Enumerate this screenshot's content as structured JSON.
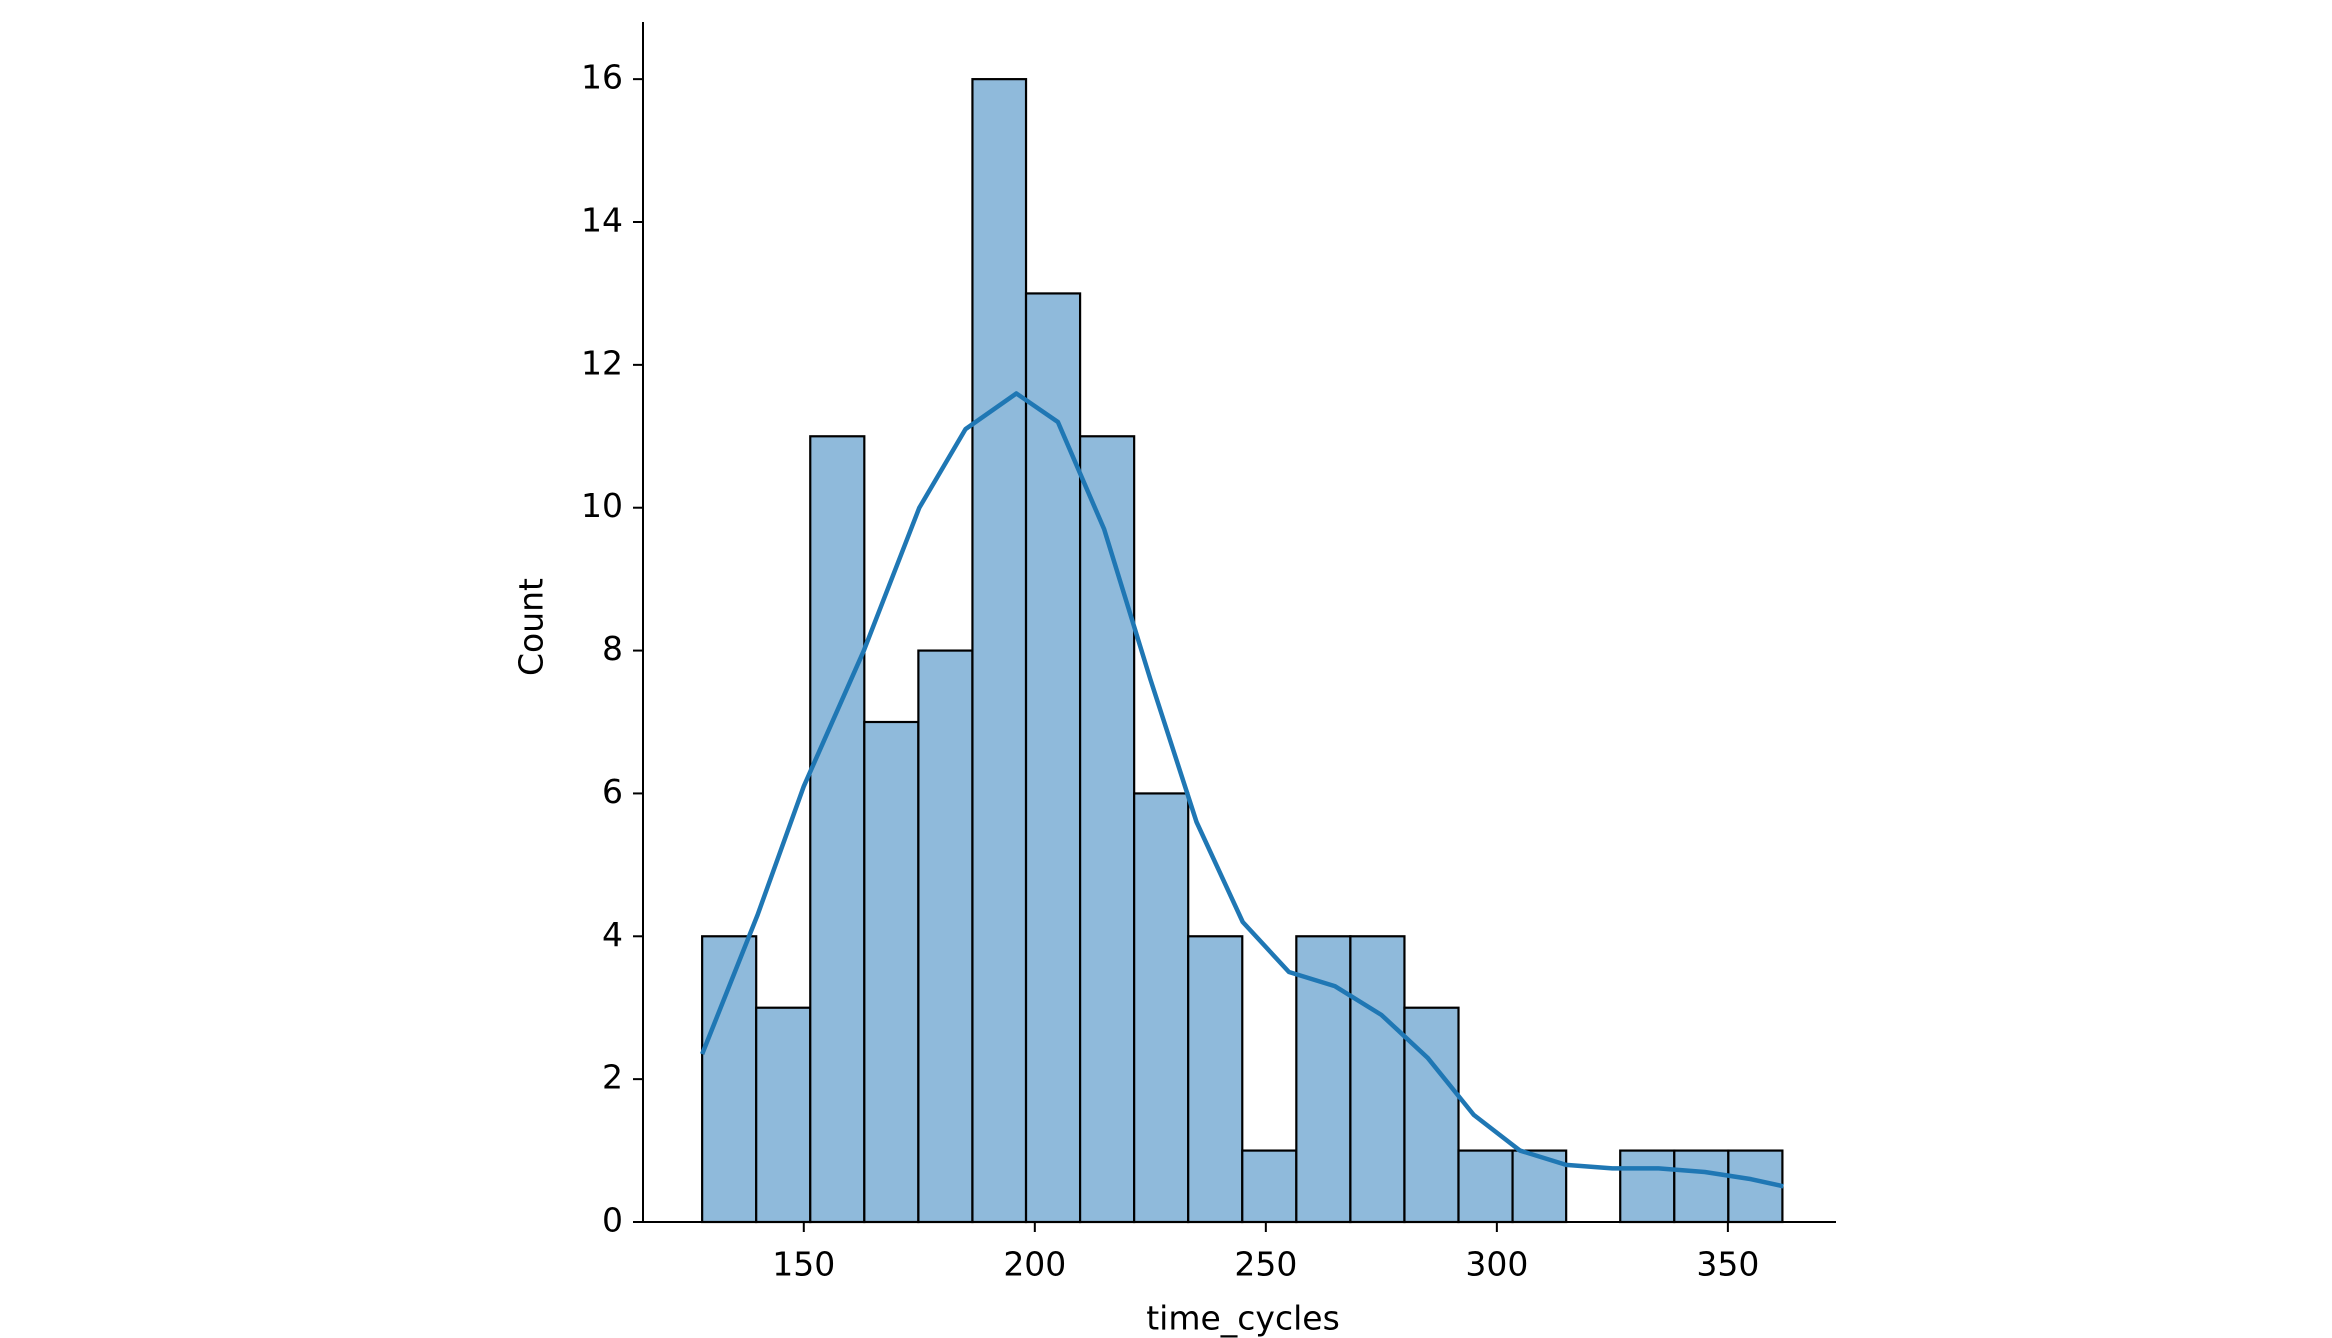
{
  "chart_data": {
    "type": "histogram",
    "x_label": "time_cycles",
    "y_label": "Count",
    "bins": [
      128.0,
      139.7,
      151.4,
      163.1,
      174.8,
      186.5,
      198.1,
      209.8,
      221.5,
      233.2,
      244.9,
      256.6,
      268.3,
      280.0,
      291.7,
      303.4,
      315.0,
      326.7,
      338.4,
      350.1,
      361.8
    ],
    "counts": [
      4,
      3,
      11,
      7,
      8,
      16,
      13,
      11,
      6,
      4,
      1,
      4,
      4,
      3,
      1,
      1,
      0,
      1,
      1,
      1
    ],
    "color": "#8fbadb",
    "edge_color": "#000000",
    "kde": {
      "color": "#1f77b4",
      "x": [
        128,
        140,
        150,
        163,
        175,
        185,
        196,
        205,
        215,
        225,
        235,
        245,
        255,
        265,
        275,
        285,
        295,
        305,
        315,
        325,
        335,
        345,
        355,
        362
      ],
      "values": [
        2.35,
        4.3,
        6.1,
        8.0,
        10.0,
        11.1,
        11.6,
        11.2,
        9.7,
        7.6,
        5.6,
        4.2,
        3.5,
        3.3,
        2.9,
        2.3,
        1.5,
        1.0,
        0.8,
        0.75,
        0.75,
        0.7,
        0.6,
        0.5
      ]
    },
    "xlim": [
      115.2,
      373.4
    ],
    "ylim": [
      0,
      16.8
    ],
    "xticks": [
      150,
      200,
      250,
      300,
      350
    ],
    "yticks": [
      0,
      2,
      4,
      6,
      8,
      10,
      12,
      14,
      16
    ]
  }
}
